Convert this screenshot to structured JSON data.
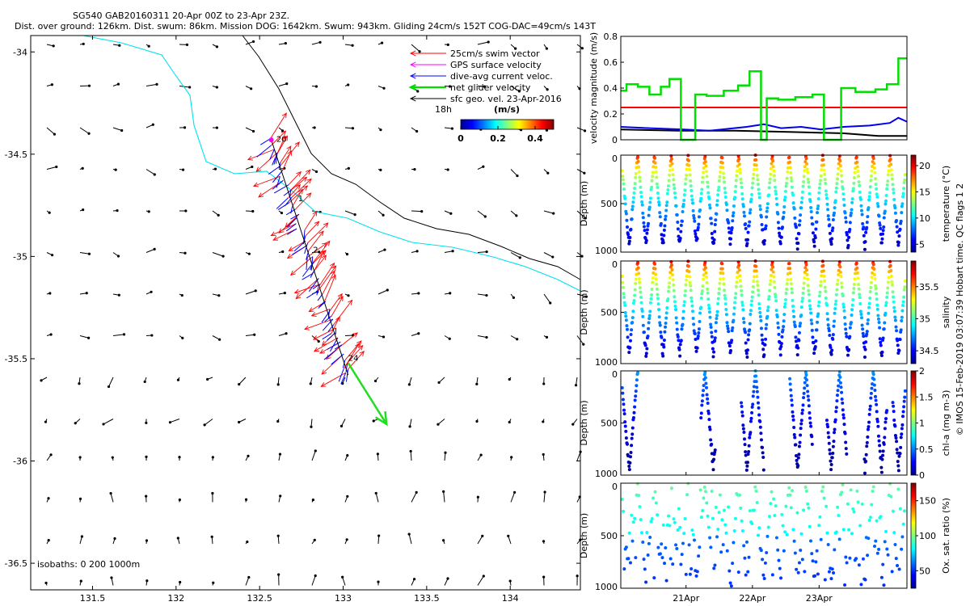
{
  "header": {
    "title_line1": "SG540 GAB20160311 20-Apr 00Z to 23-Apr 23Z.",
    "title_line2": "Dist. over ground: 126km. Dist. swum: 86km. Mission DOG: 1642km. Swum: 943km. Gliding 24cm/s 152T COG-DAC=49cm/s 143T"
  },
  "map": {
    "xticks": [
      "131.5",
      "132",
      "132.5",
      "133",
      "133.5",
      "134"
    ],
    "xtick_values": [
      131.5,
      132,
      132.5,
      133,
      133.5,
      134
    ],
    "yticks": [
      "-34",
      "-34.5",
      "-35",
      "-35.5",
      "-36",
      "-36.5"
    ],
    "ytick_values": [
      -34,
      -34.5,
      -35,
      -35.5,
      -36,
      -36.5
    ],
    "xlim": [
      131.13,
      134.42
    ],
    "ylim": [
      -36.63,
      -33.92
    ],
    "isobath_label": "isobaths: 0   200  1000m",
    "legend": [
      {
        "label": "25cm/s swim vector",
        "color": "#ff0000"
      },
      {
        "label": "GPS surface velocity",
        "color": "#ff00ff"
      },
      {
        "label": "dive-avg current veloc.",
        "color": "#0000ff"
      },
      {
        "label": "net glider velocity",
        "color": "#00dd00"
      },
      {
        "label": "sfc geo. vel. 23-Apr-2016",
        "color": "#000000"
      }
    ],
    "legend_time": "18h",
    "colorbar_title": "(m/s)",
    "colorbar_ticks": [
      "0",
      "0.2",
      "0.4"
    ],
    "colorbar_tick_values": [
      0,
      0.2,
      0.4
    ],
    "colorbar_range": [
      0,
      0.5
    ],
    "dive_labels": [
      {
        "text": "20",
        "lon": 132.6,
        "lat": -34.44
      },
      {
        "text": "1",
        "lon": 132.73,
        "lat": -34.73
      },
      {
        "text": "2",
        "lon": 132.82,
        "lat": -34.98
      },
      {
        "text": "24",
        "lon": 133.03,
        "lat": -35.51
      }
    ],
    "track_start": [
      132.57,
      -34.43
    ],
    "track_end": [
      133.03,
      -35.58
    ],
    "net_velocity_end": [
      133.26,
      -35.82
    ]
  },
  "side_label": "© IMOS 15-Feb-2019 03:07:39 Hobart time. QC flags 1  2",
  "velocity_panel": {
    "ylabel": "velocity magnitude (m/s)",
    "yticks": [
      "0",
      "0.2",
      "0.4",
      "0.6",
      "0.8"
    ],
    "ylim": [
      0,
      0.8
    ],
    "swim_speed": 0.25,
    "green_series": [
      [
        0,
        0.38
      ],
      [
        0.02,
        0.38
      ],
      [
        0.02,
        0.43
      ],
      [
        0.06,
        0.43
      ],
      [
        0.06,
        0.41
      ],
      [
        0.1,
        0.41
      ],
      [
        0.1,
        0.35
      ],
      [
        0.14,
        0.35
      ],
      [
        0.14,
        0.41
      ],
      [
        0.17,
        0.41
      ],
      [
        0.17,
        0.47
      ],
      [
        0.21,
        0.47
      ],
      [
        0.21,
        0.0
      ],
      [
        0.26,
        0.0
      ],
      [
        0.26,
        0.35
      ],
      [
        0.3,
        0.35
      ],
      [
        0.3,
        0.34
      ],
      [
        0.36,
        0.34
      ],
      [
        0.36,
        0.38
      ],
      [
        0.41,
        0.38
      ],
      [
        0.41,
        0.42
      ],
      [
        0.45,
        0.42
      ],
      [
        0.45,
        0.53
      ],
      [
        0.49,
        0.53
      ],
      [
        0.49,
        0.0
      ],
      [
        0.51,
        0.0
      ],
      [
        0.51,
        0.32
      ],
      [
        0.55,
        0.32
      ],
      [
        0.55,
        0.31
      ],
      [
        0.61,
        0.31
      ],
      [
        0.61,
        0.33
      ],
      [
        0.67,
        0.33
      ],
      [
        0.67,
        0.35
      ],
      [
        0.71,
        0.35
      ],
      [
        0.71,
        0.0
      ],
      [
        0.77,
        0.0
      ],
      [
        0.77,
        0.4
      ],
      [
        0.82,
        0.4
      ],
      [
        0.82,
        0.37
      ],
      [
        0.89,
        0.37
      ],
      [
        0.89,
        0.39
      ],
      [
        0.93,
        0.39
      ],
      [
        0.93,
        0.43
      ],
      [
        0.97,
        0.43
      ],
      [
        0.97,
        0.63
      ],
      [
        1.0,
        0.63
      ]
    ],
    "blue_series": [
      [
        0,
        0.1
      ],
      [
        0.1,
        0.09
      ],
      [
        0.22,
        0.08
      ],
      [
        0.31,
        0.07
      ],
      [
        0.44,
        0.1
      ],
      [
        0.5,
        0.12
      ],
      [
        0.56,
        0.09
      ],
      [
        0.63,
        0.1
      ],
      [
        0.7,
        0.08
      ],
      [
        0.78,
        0.1
      ],
      [
        0.87,
        0.11
      ],
      [
        0.94,
        0.13
      ],
      [
        0.97,
        0.17
      ],
      [
        1.0,
        0.14
      ]
    ],
    "black_series": [
      [
        0,
        0.08
      ],
      [
        0.2,
        0.07
      ],
      [
        0.4,
        0.07
      ],
      [
        0.6,
        0.06
      ],
      [
        0.78,
        0.05
      ],
      [
        0.9,
        0.03
      ],
      [
        1.0,
        0.03
      ]
    ]
  },
  "profiles": {
    "date_ticks": [
      "21Apr",
      "22Apr",
      "23Apr"
    ],
    "date_tick_fracs": [
      0.228,
      0.46,
      0.693
    ],
    "depth_label": "Depth (m)",
    "depth_ticks": [
      "0",
      "500",
      "1000"
    ],
    "depth_tick_values": [
      0,
      500,
      1000
    ],
    "depth_range": [
      0,
      1000
    ],
    "panels": [
      {
        "name": "temperature",
        "cbar_label": "temperature (°C)",
        "cticks": [
          "5",
          "10",
          "15",
          "20"
        ],
        "ctick_values": [
          5,
          10,
          15,
          20
        ],
        "crange": [
          3.5,
          22
        ],
        "vtop": 20.5,
        "vbot": 4,
        "max_depth": 980,
        "cycles": 17,
        "gaps": []
      },
      {
        "name": "salinity",
        "cbar_label": "salinity",
        "cticks": [
          "34.5",
          "35",
          "35.5"
        ],
        "ctick_values": [
          34.5,
          35,
          35.5
        ],
        "crange": [
          34.3,
          35.9
        ],
        "vtop": 35.8,
        "vbot": 34.35,
        "max_depth": 960,
        "cycles": 17,
        "gaps": []
      },
      {
        "name": "chl-a",
        "cbar_label": "chl-a (mg m-3)",
        "cticks": [
          "0",
          "0.5",
          "1",
          "1.5",
          "2"
        ],
        "ctick_values": [
          0,
          0.5,
          1,
          1.5,
          2
        ],
        "crange": [
          0,
          2
        ],
        "vtop": 0.6,
        "vbot": 0.03,
        "max_depth": 990,
        "cycles": 17,
        "gaps": [
          [
            0.06,
            0.28
          ],
          [
            0.33,
            0.42
          ],
          [
            0.5,
            0.59
          ],
          [
            0.67,
            0.72
          ],
          [
            0.79,
            0.85
          ],
          [
            0.93,
            0.95
          ]
        ]
      },
      {
        "name": "oxygen",
        "cbar_label": "Ox. sat. ratio (%)",
        "cticks": [
          "50",
          "100",
          "150"
        ],
        "ctick_values": [
          50,
          100,
          150
        ],
        "crange": [
          25,
          175
        ],
        "vtop": 100,
        "vbot": 70,
        "max_depth": 985,
        "cycles": 17,
        "gaps": []
      }
    ]
  }
}
